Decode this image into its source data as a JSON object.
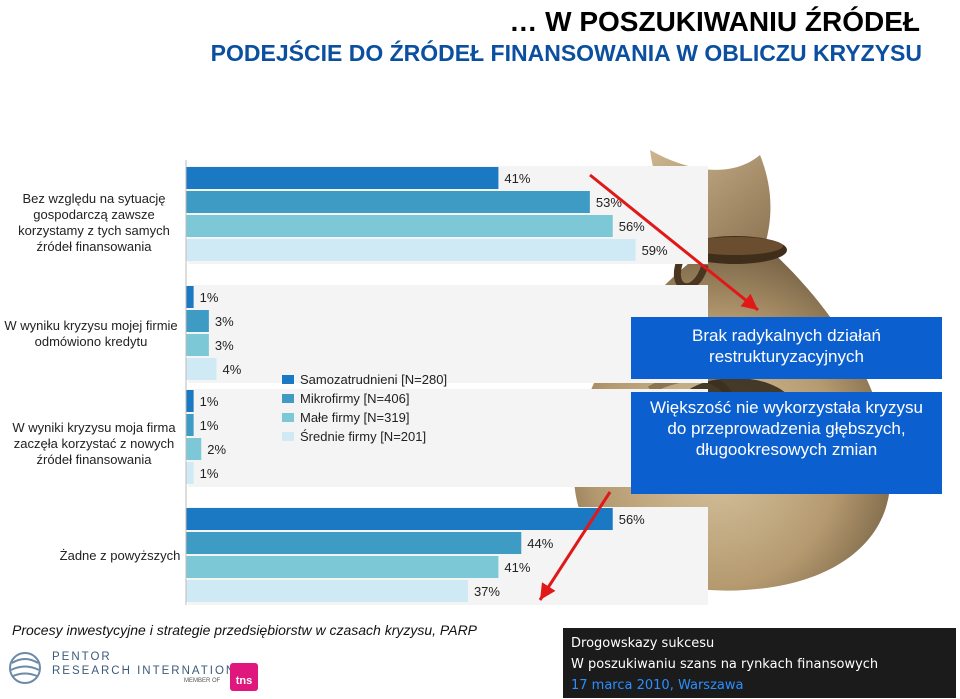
{
  "header": {
    "title": "… W POSZUKIWANIU ŹRÓDEŁ",
    "subtitle": "PODEJŚCIE DO ŹRÓDEŁ FINANSOWANIA W OBLICZU KRYZYSU"
  },
  "chart_data": {
    "type": "bar",
    "orientation": "horizontal",
    "categories": [
      "Bez względu na sytuację gospodarczą zawsze korzystamy z tych samych źródeł finansowania",
      "W wyniku kryzysu mojej firmie odmówiono kredytu",
      "W wyniki kryzysu moja firma zaczęła korzystać z nowych źródeł finansowania",
      "Żadne z powyższych"
    ],
    "series": [
      {
        "name": "Samozatrudnieni [N=280]",
        "color": "#1b78c2",
        "values": [
          41,
          1,
          1,
          56
        ]
      },
      {
        "name": "Mikrofirmy [N=406]",
        "color": "#3d9bc4",
        "values": [
          53,
          3,
          1,
          44
        ]
      },
      {
        "name": "Małe firmy [N=319]",
        "color": "#7cc8d6",
        "values": [
          56,
          3,
          2,
          41
        ]
      },
      {
        "name": "Średnie firmy [N=201]",
        "color": "#cfeaf5",
        "values": [
          59,
          4,
          1,
          37
        ]
      }
    ],
    "value_labels": [
      [
        "41%",
        "1%",
        "1%",
        "56%"
      ],
      [
        "53%",
        "3%",
        "1%",
        "44%"
      ],
      [
        "56%",
        "3%",
        "2%",
        "41%"
      ],
      [
        "59%",
        "4%",
        "1%",
        "37%"
      ]
    ],
    "legend_position": "center"
  },
  "boxes": {
    "box1": "Brak radykalnych działań restrukturyzacyjnych",
    "box2": "Większość nie wykorzystała kryzysu do przeprowadzenia głębszych, długookresowych zmian"
  },
  "source": "Procesy inwestycyjne i strategie przedsiębiorstw w czasach kryzysu, PARP",
  "logo": {
    "line1": "PENTOR",
    "line2": "RESEARCH INTERNATIONAL",
    "member": "MEMBER OF",
    "tns": "tns"
  },
  "footer": {
    "line1": "Drogowskazy sukcesu",
    "line2": "W poszukiwaniu szans na rynkach finansowych",
    "date": "17 marca 2010, Warszawa"
  }
}
